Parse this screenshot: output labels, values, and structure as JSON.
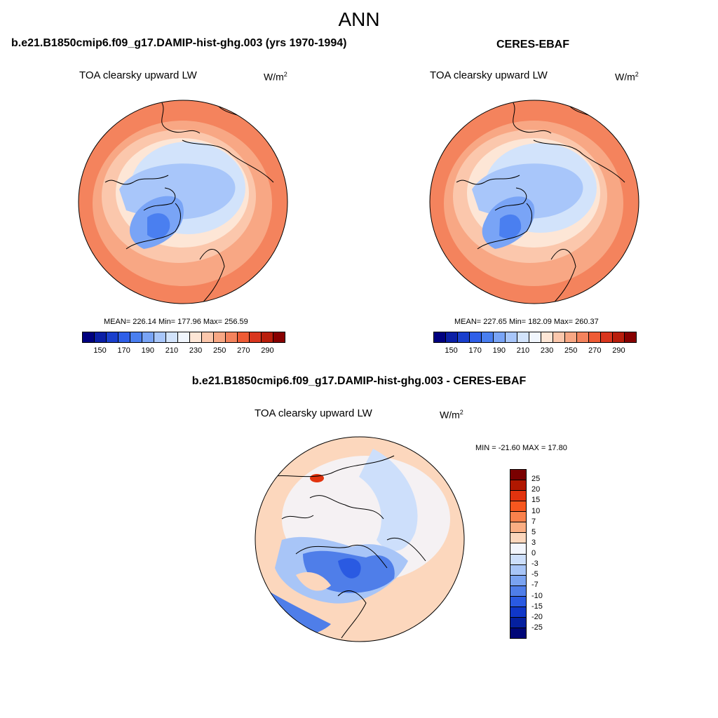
{
  "page": {
    "title": "ANN"
  },
  "panels": [
    {
      "title": "b.e21.B1850cmip6.f09_g17.DAMIP-hist-ghg.003 (yrs 1970-1994)",
      "variable": "TOA clearsky upward LW",
      "units": "W/m",
      "units_exp": "2",
      "stats": "MEAN= 226.14  Min= 177.96  Max= 256.59"
    },
    {
      "title": "CERES-EBAF",
      "variable": "TOA clearsky upward LW",
      "units": "W/m",
      "units_exp": "2",
      "stats": "MEAN= 227.65  Min= 182.09  Max= 260.37"
    },
    {
      "title": "b.e21.B1850cmip6.f09_g17.DAMIP-hist-ghg.003 - CERES-EBAF",
      "variable": "TOA clearsky upward LW",
      "units": "W/m",
      "units_exp": "2",
      "stats": "MIN = -21.60 MAX =  17.80"
    }
  ],
  "colorbar_abs": {
    "colors": [
      "#00007f",
      "#0b1fa6",
      "#1a3fcd",
      "#2f5fe8",
      "#4a7ff0",
      "#79a4f6",
      "#a8c6fa",
      "#d2e3fb",
      "#f1f6fd",
      "#fde6d6",
      "#fbc7ac",
      "#f8a784",
      "#f4835d",
      "#ee5b35",
      "#d9361e",
      "#b91e0c",
      "#870000"
    ],
    "labels": [
      "150",
      "170",
      "190",
      "210",
      "230",
      "250",
      "270",
      "290"
    ]
  },
  "colorbar_diff": {
    "colors_top_to_bottom": [
      "#7a0000",
      "#b01700",
      "#e2330e",
      "#f7571f",
      "#f9814c",
      "#fbae83",
      "#fcd7bd",
      "#f3f6fd",
      "#cddffb",
      "#a8c5f7",
      "#7aa3f1",
      "#4f7ee9",
      "#2a5ae2",
      "#1037c8",
      "#05209f",
      "#000778"
    ],
    "labels": [
      "25",
      "20",
      "15",
      "10",
      "7",
      "5",
      "3",
      "0",
      "-3",
      "-5",
      "-7",
      "-10",
      "-15",
      "-20",
      "-25"
    ]
  },
  "map_palette": {
    "abs_fills": [
      "#f4835d",
      "#f8a784",
      "#fbc7ac",
      "#fde6d6",
      "#d2e3fb",
      "#a8c6fa",
      "#79a4f6",
      "#4a7ff0"
    ],
    "diff_fills": [
      "#fcd7bd",
      "#f3f6fd",
      "#cddffb",
      "#a8c5f7",
      "#4f7ee9",
      "#2a5ae2",
      "#f9814c",
      "#e2330e"
    ]
  }
}
